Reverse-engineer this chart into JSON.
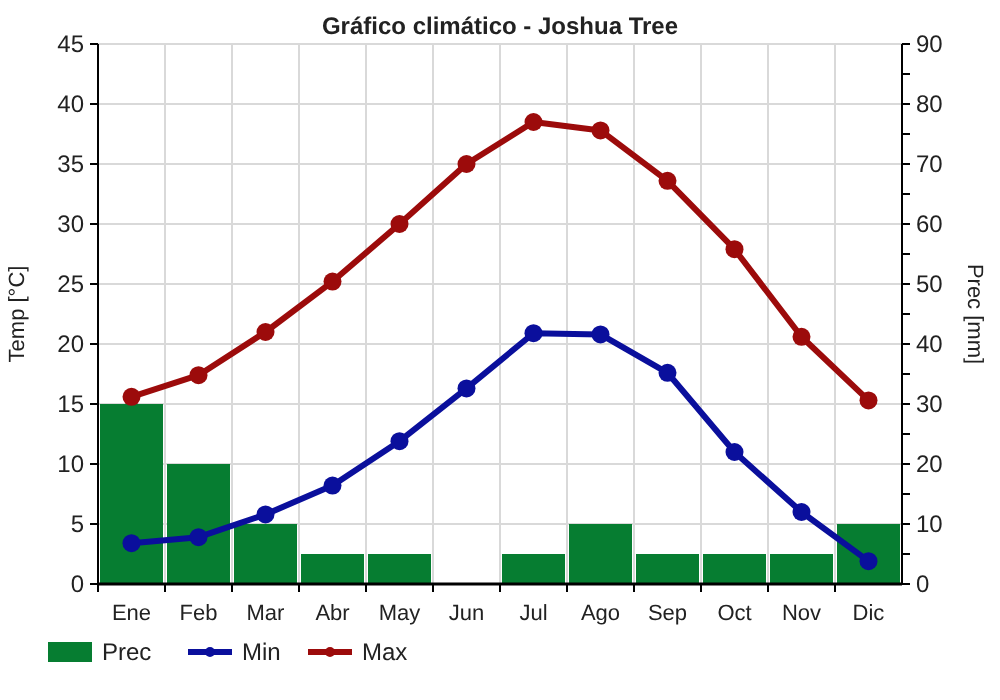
{
  "chart_data": {
    "type": "bar",
    "title": "Gráfico climático - Joshua Tree",
    "ylabel": "Temp [°C]",
    "y2label": "Prec [mm]",
    "categories": [
      "Ene",
      "Feb",
      "Mar",
      "Abr",
      "May",
      "Jun",
      "Jul",
      "Ago",
      "Sep",
      "Oct",
      "Nov",
      "Dic"
    ],
    "series": [
      {
        "name": "Prec",
        "axis": "y2",
        "color": "#067d31",
        "values": [
          30,
          20,
          10,
          5,
          5,
          0,
          5,
          10,
          5,
          5,
          5,
          10
        ]
      },
      {
        "name": "Min",
        "type": "line",
        "color": "#0a0f9c",
        "values": [
          3.4,
          3.9,
          5.8,
          8.2,
          11.9,
          16.3,
          20.9,
          20.8,
          17.6,
          11.0,
          6.0,
          1.9
        ]
      },
      {
        "name": "Max",
        "type": "line",
        "color": "#9c0b0b",
        "values": [
          15.6,
          17.4,
          21.0,
          25.2,
          30.0,
          35.0,
          38.5,
          37.8,
          33.6,
          27.9,
          20.6,
          15.3
        ]
      }
    ],
    "ylim": [
      0,
      45
    ],
    "yticks": [
      0,
      5,
      10,
      15,
      20,
      25,
      30,
      35,
      40,
      45
    ],
    "y2lim": [
      0,
      90
    ],
    "y2ticks": [
      0,
      {
        "value": 5,
        "label": null
      },
      10,
      {
        "value": 15,
        "label": null
      },
      20,
      {
        "value": 25,
        "label": null
      },
      30,
      {
        "value": 35,
        "label": null
      },
      40,
      {
        "value": 45,
        "label": null
      },
      50,
      {
        "value": 55,
        "label": null
      },
      60,
      {
        "value": 65,
        "label": null
      },
      70,
      {
        "value": 75,
        "label": null
      },
      80,
      {
        "value": 85,
        "label": null
      },
      90
    ],
    "grid": true,
    "legend": "bottom",
    "marker": "circle",
    "line_style": "solid"
  }
}
